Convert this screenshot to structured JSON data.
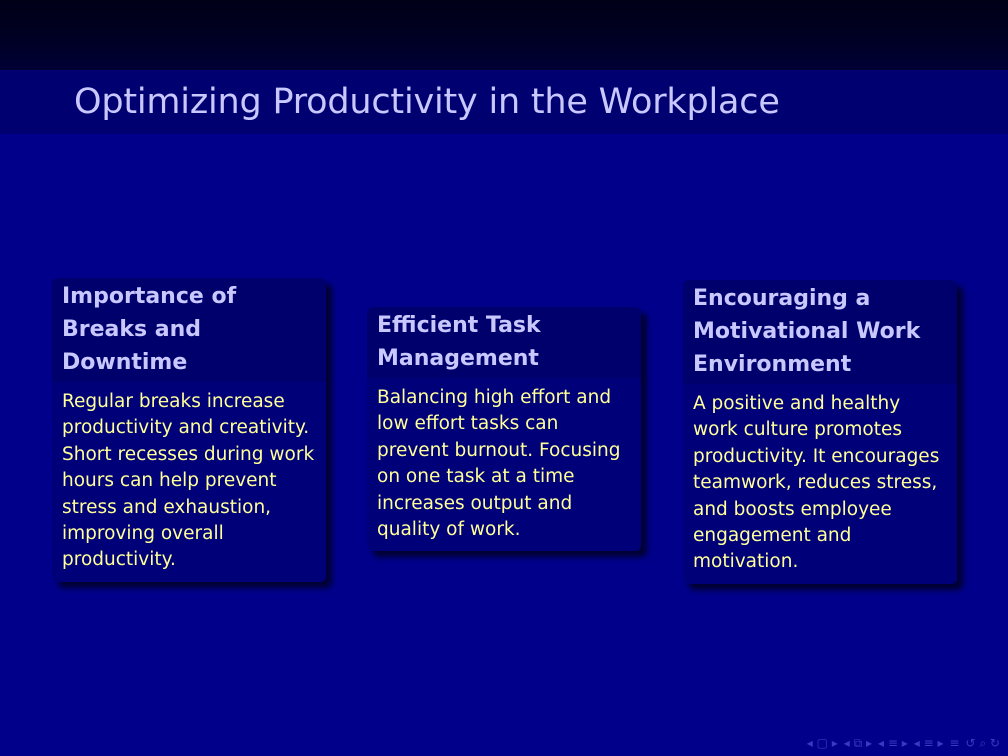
{
  "frame": {
    "title": "Optimizing Productivity in the Workplace"
  },
  "blocks": [
    {
      "title": "Importance of Breaks and Downtime",
      "body": "Regular breaks increase productivity and creativity. Short recesses during work hours can help prevent stress and exhaustion, improving overall productivity."
    },
    {
      "title": "Efficient Task Management",
      "body": "Balancing high effort and low effort tasks can prevent burnout. Focusing on one task at a time increases output and quality of work."
    },
    {
      "title": "Encouraging a Motivational Work Environment",
      "body": "A positive and healthy work culture promotes productivity. It encourages teamwork, reduces stress, and boosts employee engagement and motivation."
    }
  ],
  "navigation": {
    "icons": [
      "nav-frame-icon",
      "nav-subsection-icon",
      "nav-section-icon",
      "nav-document-icon",
      "nav-menu-icon",
      "nav-search-icon"
    ]
  },
  "colors": {
    "background": "#00008b",
    "title_text": "#c8c8ff",
    "body_text": "#ffff99"
  }
}
